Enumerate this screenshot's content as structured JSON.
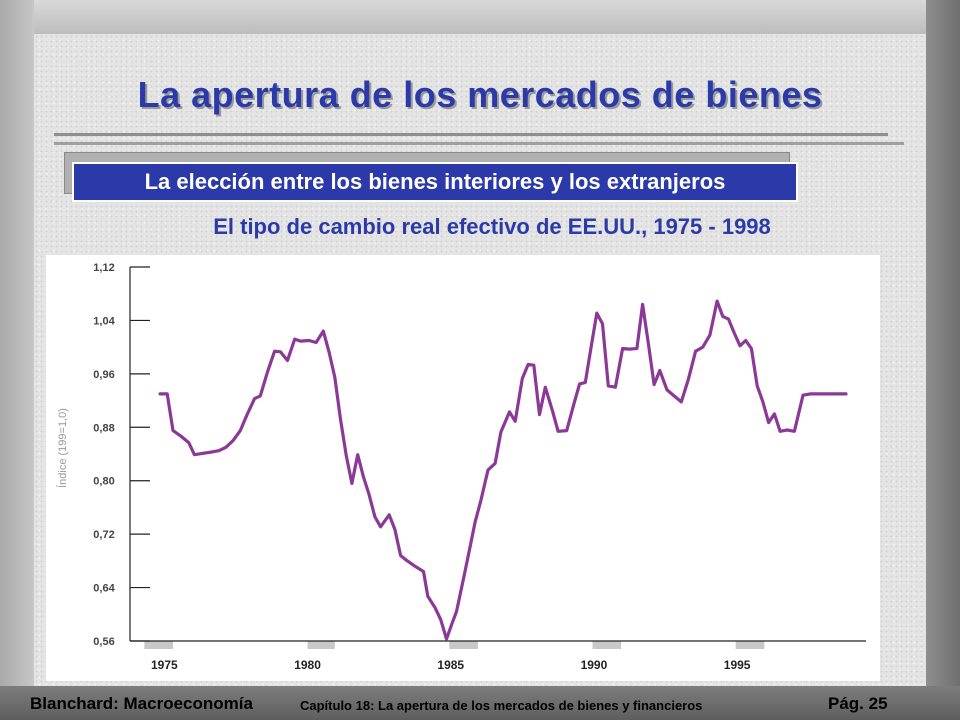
{
  "slide": {
    "title": "La apertura de los mercados de bienes",
    "subtitle": "La elección entre los bienes interiores y los extranjeros",
    "footer_left": "Blanchard: Macroeconomía",
    "footer_center": "Capítulo 18:  La apertura de los mercados de bienes y financieros",
    "footer_right": "Pág. 25",
    "colors": {
      "title": "#2b3aa8",
      "subtitle_bg": "#2b3aa8",
      "line": "#8a3a96",
      "shade": "#c8c8c8"
    }
  },
  "chart_data": {
    "type": "line",
    "title": "El tipo de cambio real efectivo de EE.UU., 1975 - 1998",
    "ylabel": "Índice (199=1,0)",
    "xlabel": "",
    "xlim": [
      1973.8,
      1999.5
    ],
    "ylim": [
      0.56,
      1.12
    ],
    "yticks": [
      1.12,
      1.04,
      0.96,
      0.88,
      0.8,
      0.72,
      0.64,
      0.56
    ],
    "ytick_labels": [
      "1,12",
      "1,04",
      "0,96",
      "0,88",
      "0,80",
      "0,72",
      "0,64",
      "0,56"
    ],
    "xticks": [
      1975,
      1980,
      1985,
      1990,
      1995
    ],
    "xtick_labels": [
      "1975",
      "1980",
      "1985",
      "1990",
      "1995"
    ],
    "grid": false,
    "series": [
      {
        "name": "",
        "color": "#8a3a96",
        "x": [
          1974.85,
          1975.1,
          1975.3,
          1975.6,
          1975.85,
          1976.05,
          1976.35,
          1976.65,
          1976.9,
          1977.15,
          1977.4,
          1977.65,
          1977.9,
          1978.15,
          1978.35,
          1978.6,
          1978.85,
          1979.05,
          1979.3,
          1979.55,
          1979.75,
          1980.05,
          1980.3,
          1980.55,
          1980.75,
          1980.95,
          1981.15,
          1981.35,
          1981.55,
          1981.75,
          1981.95,
          1982.15,
          1982.35,
          1982.55,
          1982.85,
          1983.05,
          1983.25,
          1983.45,
          1983.75,
          1984.05,
          1984.2,
          1984.45,
          1984.65,
          1984.85,
          1985.05,
          1985.2,
          1985.45,
          1985.65,
          1985.85,
          1986.05,
          1986.3,
          1986.55,
          1986.75,
          1987.05,
          1987.25,
          1987.5,
          1987.7,
          1987.9,
          1988.1,
          1988.3,
          1988.55,
          1988.75,
          1989.05,
          1989.3,
          1989.5,
          1989.7,
          1989.9,
          1990.1,
          1990.3,
          1990.5,
          1990.75,
          1991.0,
          1991.25,
          1991.5,
          1991.7,
          1991.9,
          1992.1,
          1992.3,
          1992.55,
          1992.8,
          1993.05,
          1993.3,
          1993.55,
          1993.8,
          1994.05,
          1994.3,
          1994.5,
          1994.7,
          1994.9,
          1995.1,
          1995.3,
          1995.5,
          1995.7,
          1995.9,
          1996.1,
          1996.3,
          1996.5,
          1996.75,
          1997.0,
          1997.3,
          1997.55,
          1997.8,
          1998.05,
          1998.3,
          1998.55,
          1998.8
        ],
        "y": [
          0.93,
          0.93,
          0.875,
          0.866,
          0.857,
          0.839,
          0.841,
          0.843,
          0.845,
          0.85,
          0.86,
          0.875,
          0.9,
          0.923,
          0.927,
          0.963,
          0.994,
          0.993,
          0.98,
          1.012,
          1.009,
          1.01,
          1.007,
          1.024,
          0.993,
          0.955,
          0.892,
          0.838,
          0.796,
          0.839,
          0.806,
          0.779,
          0.746,
          0.731,
          0.749,
          0.727,
          0.688,
          0.681,
          0.672,
          0.664,
          0.627,
          0.61,
          0.592,
          0.563,
          0.587,
          0.604,
          0.654,
          0.696,
          0.738,
          0.77,
          0.816,
          0.826,
          0.873,
          0.903,
          0.889,
          0.953,
          0.974,
          0.973,
          0.899,
          0.94,
          0.905,
          0.874,
          0.875,
          0.915,
          0.945,
          0.947,
          1.0,
          1.051,
          1.035,
          0.942,
          0.94,
          0.998,
          0.997,
          0.998,
          1.064,
          1.005,
          0.944,
          0.965,
          0.936,
          0.927,
          0.918,
          0.952,
          0.994,
          1.0,
          1.018,
          1.069,
          1.046,
          1.042,
          1.021,
          1.002,
          1.01,
          0.998,
          0.942,
          0.918,
          0.887,
          0.9,
          0.874,
          0.876,
          0.874,
          0.928,
          0.93,
          0.93,
          0.93,
          0.93,
          0.93,
          0.93
        ]
      }
    ],
    "shaded_periods": [
      [
        1974.3,
        1975.3
      ],
      [
        1980.0,
        1980.95
      ],
      [
        1984.95,
        1985.95
      ],
      [
        1989.95,
        1990.95
      ],
      [
        1994.95,
        1995.95
      ]
    ]
  }
}
